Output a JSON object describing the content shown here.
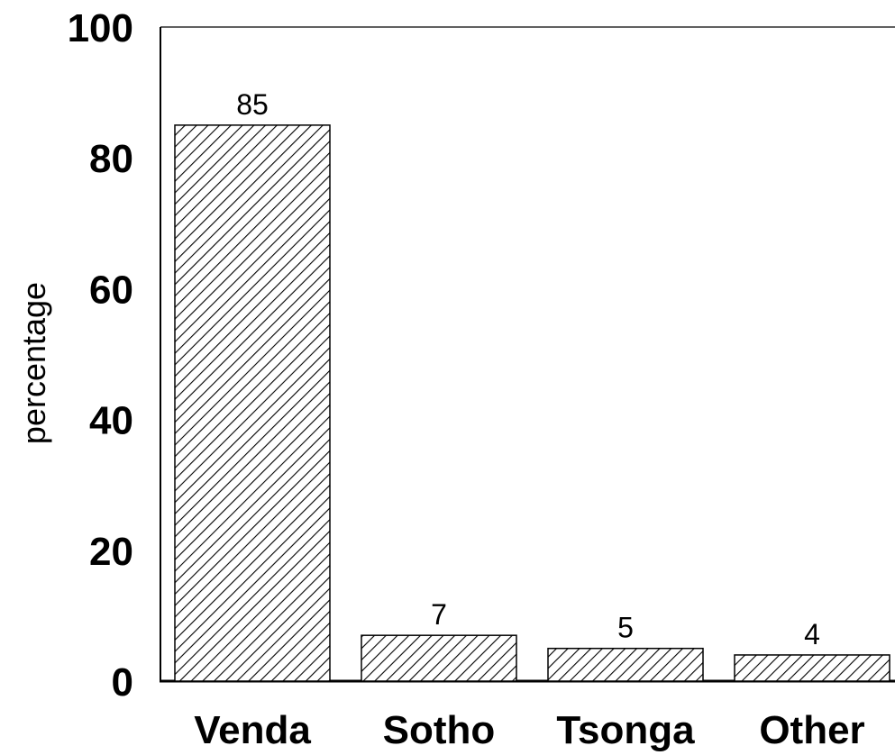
{
  "chart_data": {
    "type": "bar",
    "categories": [
      "Venda",
      "Sotho",
      "Tsonga",
      "Other"
    ],
    "values": [
      85,
      7,
      5,
      4
    ],
    "data_labels": [
      "85",
      "7",
      "5",
      "4"
    ],
    "title": "",
    "xlabel": "",
    "ylabel": "percentage",
    "ylim": [
      0,
      100
    ],
    "yticks": [
      0,
      20,
      40,
      60,
      80,
      100
    ],
    "ytick_labels": [
      "0",
      "20",
      "40",
      "60",
      "80",
      "100"
    ],
    "grid": false,
    "bar_fill": "hatched",
    "bar_color": "#000000",
    "background": "#ffffff"
  }
}
